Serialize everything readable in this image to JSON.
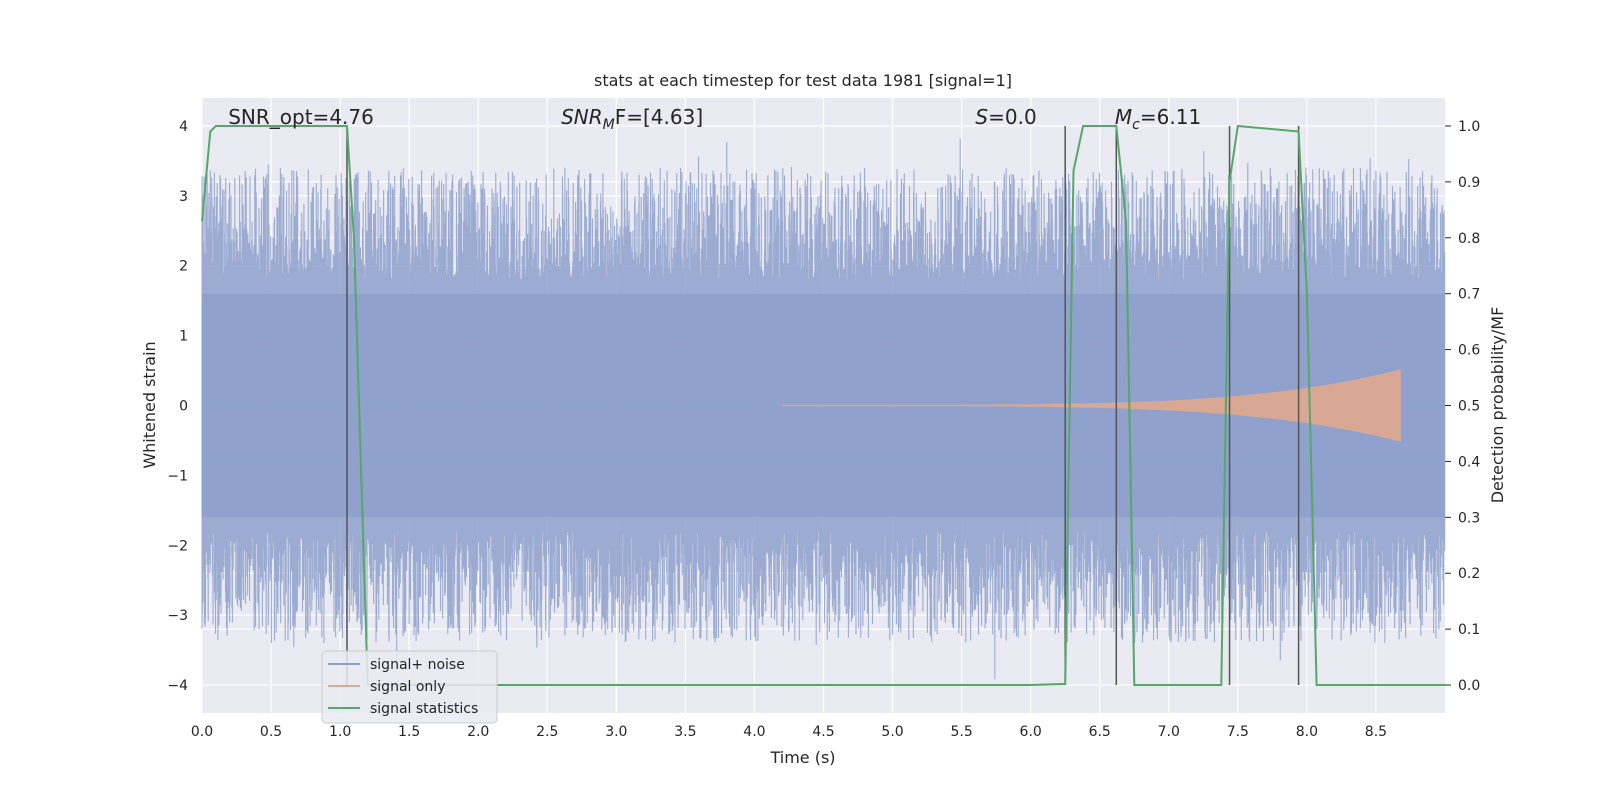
{
  "chart_data": {
    "type": "line",
    "title": "stats at each timestep for test data 1981 [signal=1]",
    "xlabel": "Time (s)",
    "ylabel_left": "Whitened strain",
    "ylabel_right": "Detection probability/MF",
    "xlim": [
      0.0,
      9.0
    ],
    "ylim_left": [
      -4.4,
      4.4
    ],
    "ylim_right": [
      -0.05,
      1.05
    ],
    "xticks": [
      "0.0",
      "0.5",
      "1.0",
      "1.5",
      "2.0",
      "2.5",
      "3.0",
      "3.5",
      "4.0",
      "4.5",
      "5.0",
      "5.5",
      "6.0",
      "6.5",
      "7.0",
      "7.5",
      "8.0",
      "8.5"
    ],
    "xtick_values": [
      0.0,
      0.5,
      1.0,
      1.5,
      2.0,
      2.5,
      3.0,
      3.5,
      4.0,
      4.5,
      5.0,
      5.5,
      6.0,
      6.5,
      7.0,
      7.5,
      8.0,
      8.5
    ],
    "yticks_left": [
      "−4",
      "−3",
      "−2",
      "−1",
      "0",
      "1",
      "2",
      "3",
      "4"
    ],
    "ytick_values_left": [
      -4,
      -3,
      -2,
      -1,
      0,
      1,
      2,
      3,
      4
    ],
    "yticks_right": [
      "0.0",
      "0.1",
      "0.2",
      "0.3",
      "0.4",
      "0.5",
      "0.6",
      "0.7",
      "0.8",
      "0.9",
      "1.0"
    ],
    "ytick_values_right": [
      0.0,
      0.1,
      0.2,
      0.3,
      0.4,
      0.5,
      0.6,
      0.7,
      0.8,
      0.9,
      1.0
    ],
    "grid": true,
    "legend_position": "lower-left",
    "annotations": [
      {
        "x": 0.19,
        "text": "SNR_opt=4.76"
      },
      {
        "x": 2.6,
        "text": "SNR",
        "sub": "M",
        "suffix": "F=[4.63]",
        "italic": true
      },
      {
        "x": 5.6,
        "text": "S",
        "suffix": "=0.0",
        "italic": true
      },
      {
        "x": 6.61,
        "text": "M",
        "sub": "c",
        "suffix": "=6.11",
        "italic": true
      }
    ],
    "vertical_lines_x": [
      1.05,
      6.25,
      6.62,
      7.44,
      7.94
    ],
    "noise": {
      "x_start": 0.0,
      "x_end": 9.0,
      "sample_step": 0.0025,
      "core_amplitude": 1.6,
      "peak_amplitude_max": 4.0
    },
    "signal_only": {
      "x_start": 4.2,
      "x_end": 8.68,
      "envelope_start": 0.01,
      "envelope_peak": 0.52
    },
    "series": [
      {
        "name": "signal+ noise",
        "color": "#8da0cb",
        "role": "filled-noise"
      },
      {
        "name": "signal only",
        "color": "#e0a98f",
        "role": "chirp"
      },
      {
        "name": "signal statistics",
        "color": "#55a868",
        "axis": "right",
        "x": [
          0.0,
          0.06,
          0.1,
          0.15,
          0.5,
          1.0,
          1.05,
          1.1,
          1.2,
          1.3,
          2.0,
          3.0,
          4.0,
          4.5,
          4.95,
          5.0,
          5.5,
          6.0,
          6.25,
          6.31,
          6.38,
          6.5,
          6.62,
          6.69,
          6.75,
          6.85,
          7.0,
          7.38,
          7.44,
          7.5,
          7.94,
          8.0,
          8.07,
          8.1,
          8.5,
          9.0
        ],
        "values": [
          0.83,
          0.99,
          1.0,
          1.0,
          1.0,
          1.0,
          1.0,
          0.8,
          0.0,
          0.0,
          0.0,
          0.0,
          0.0,
          0.0,
          0.0,
          0.0,
          0.0,
          0.0,
          0.002,
          0.92,
          1.0,
          1.0,
          1.0,
          0.83,
          0.0,
          0.0,
          0.0,
          0.0,
          0.9,
          1.0,
          0.99,
          0.7,
          0.0,
          0.0,
          0.0,
          0.0
        ]
      }
    ]
  },
  "colors": {
    "plot_background": "#eaeaf2",
    "grid": "#ffffff",
    "vertical_line": "#555555",
    "legend_background": "#eaeaf2",
    "legend_border": "#cccccc"
  }
}
